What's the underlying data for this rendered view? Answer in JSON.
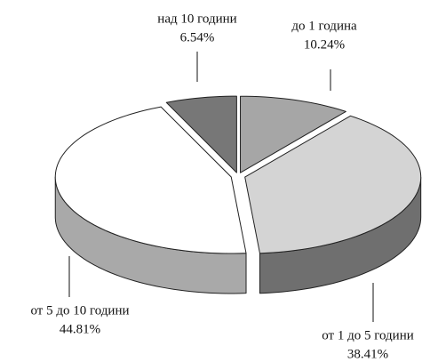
{
  "chart_data": {
    "type": "pie3d",
    "categories": [
      "до 1 година",
      "от 1 до 5 години",
      "от 5 до 10 години",
      "над 10 години"
    ],
    "values": [
      10.24,
      38.41,
      44.81,
      6.54
    ],
    "value_labels": [
      "10.24%",
      "38.41%",
      "44.81%",
      "6.54%"
    ],
    "colors": [
      "#a6a6a6",
      "#d4d4d4",
      "#ffffff",
      "#777777"
    ],
    "side_colors": [
      "#6f6f6f",
      "#6f6f6f",
      "#a9a9a9",
      "#555555"
    ]
  }
}
